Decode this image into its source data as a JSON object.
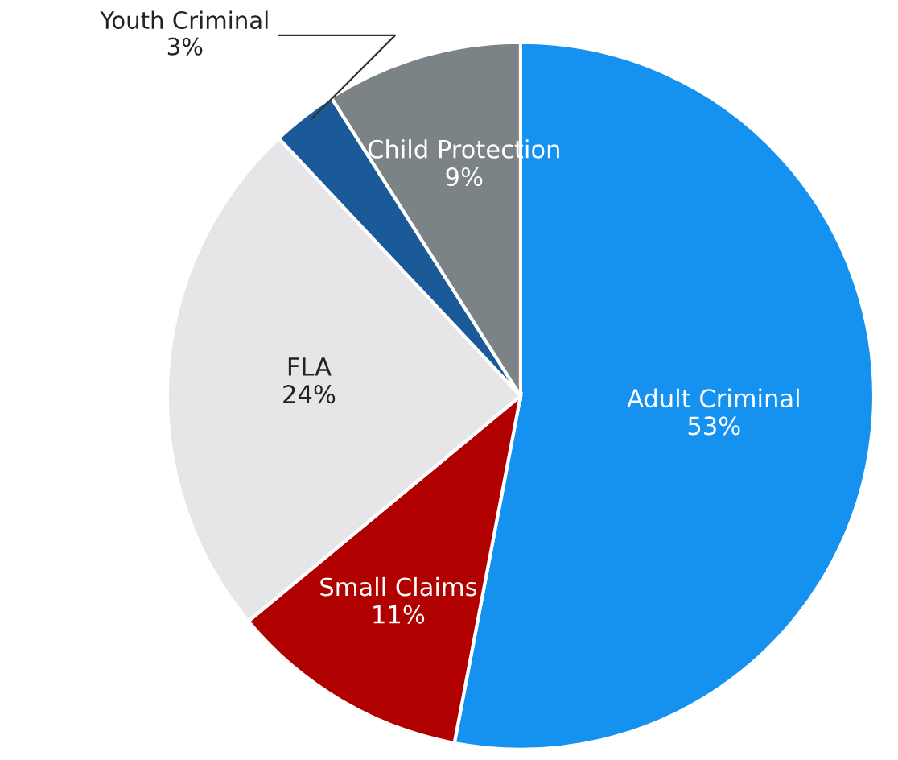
{
  "chart_data": {
    "type": "pie",
    "categories": [
      "Adult Criminal",
      "Small Claims",
      "FLA",
      "Youth Criminal",
      "Child Protection"
    ],
    "values": [
      53,
      11,
      24,
      3,
      9
    ],
    "value_labels": [
      "53%",
      "11%",
      "24%",
      "3%",
      "9%"
    ],
    "colors": [
      "#1591f0",
      "#b00000",
      "#e6e6e8",
      "#1a5a98",
      "#7c8386"
    ]
  }
}
